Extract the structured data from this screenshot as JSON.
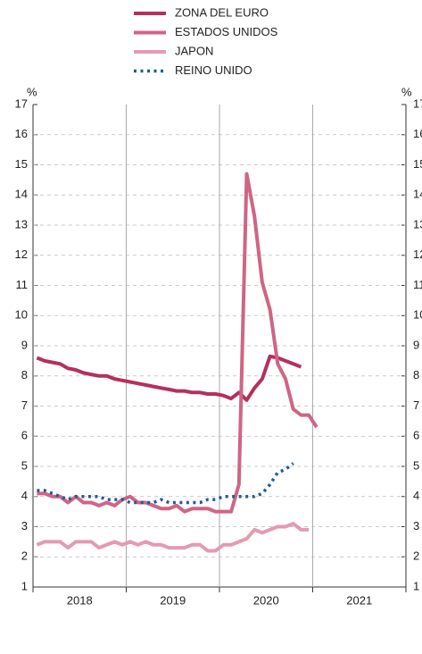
{
  "chart_data": {
    "type": "line",
    "y_unit": "%",
    "x": [
      null,
      null,
      null,
      null,
      null,
      "2018",
      null,
      null,
      null,
      null,
      null,
      null,
      null,
      null,
      null,
      null,
      null,
      "2019",
      null,
      null,
      null,
      null,
      null,
      null,
      null,
      null,
      null,
      null,
      null,
      "2020",
      null,
      null,
      null,
      null,
      null,
      null,
      null,
      null,
      null,
      null,
      null,
      "2021",
      null,
      null,
      null,
      null,
      null,
      null
    ],
    "series": [
      {
        "name": "ZONA DEL EURO",
        "color": "#b5305a",
        "style": "solid",
        "values": [
          8.6,
          8.5,
          8.45,
          8.4,
          8.25,
          8.2,
          8.1,
          8.05,
          8.0,
          8.0,
          7.9,
          7.85,
          7.8,
          7.75,
          7.7,
          7.65,
          7.6,
          7.55,
          7.5,
          7.5,
          7.45,
          7.45,
          7.4,
          7.4,
          7.35,
          7.25,
          7.45,
          7.2,
          7.6,
          7.9,
          8.65,
          8.6,
          8.5,
          8.4,
          8.3,
          null,
          null,
          null,
          null,
          null,
          null,
          null,
          null,
          null,
          null,
          null,
          null,
          null
        ]
      },
      {
        "name": "ESTADOS UNIDOS",
        "color": "#cf6585",
        "style": "solid",
        "values": [
          4.1,
          4.1,
          4.0,
          4.0,
          3.8,
          4.0,
          3.8,
          3.8,
          3.7,
          3.8,
          3.7,
          3.9,
          4.0,
          3.8,
          3.8,
          3.7,
          3.6,
          3.6,
          3.7,
          3.5,
          3.6,
          3.6,
          3.6,
          3.5,
          3.5,
          3.5,
          4.4,
          14.7,
          13.3,
          11.1,
          10.2,
          8.4,
          7.9,
          6.9,
          6.7,
          6.7,
          6.3,
          null,
          null,
          null,
          null,
          null,
          null,
          null,
          null,
          null,
          null,
          null
        ]
      },
      {
        "name": "JAPON",
        "color": "#e49ab0",
        "style": "solid",
        "values": [
          2.4,
          2.5,
          2.5,
          2.5,
          2.3,
          2.5,
          2.5,
          2.5,
          2.3,
          2.4,
          2.5,
          2.4,
          2.5,
          2.4,
          2.5,
          2.4,
          2.4,
          2.3,
          2.3,
          2.3,
          2.4,
          2.4,
          2.2,
          2.2,
          2.4,
          2.4,
          2.5,
          2.6,
          2.9,
          2.8,
          2.9,
          3.0,
          3.0,
          3.1,
          2.9,
          2.9,
          null,
          null,
          null,
          null,
          null,
          null,
          null,
          null,
          null,
          null,
          null,
          null
        ]
      },
      {
        "name": "REINO UNIDO",
        "color": "#1f5c99",
        "style": "dotted",
        "values": [
          4.2,
          4.2,
          4.1,
          4.0,
          3.9,
          4.0,
          4.0,
          4.0,
          4.0,
          3.9,
          3.9,
          3.9,
          3.8,
          3.8,
          3.8,
          3.8,
          3.9,
          3.8,
          3.8,
          3.8,
          3.8,
          3.8,
          3.9,
          3.9,
          4.0,
          4.0,
          4.0,
          4.0,
          4.0,
          4.1,
          4.4,
          4.8,
          4.9,
          5.1,
          null,
          null,
          null,
          null,
          null,
          null,
          null,
          null,
          null,
          null,
          null,
          null,
          null,
          null
        ]
      }
    ],
    "ylim": [
      1,
      17
    ],
    "yticks": [
      1,
      2,
      3,
      4,
      5,
      6,
      7,
      8,
      9,
      10,
      11,
      12,
      13,
      14,
      15,
      16,
      17
    ],
    "grid": true
  }
}
